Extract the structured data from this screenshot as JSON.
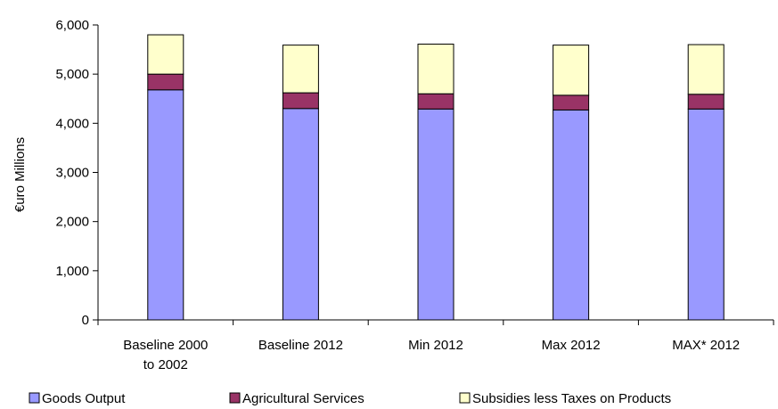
{
  "chart_data": {
    "type": "bar",
    "stacked": true,
    "title": "",
    "xlabel": "",
    "ylabel": "€uro Millions",
    "ylim": [
      0,
      6000
    ],
    "yticks": [
      "0",
      "1,000",
      "2,000",
      "3,000",
      "4,000",
      "5,000",
      "6,000"
    ],
    "ytick_values": [
      0,
      1000,
      2000,
      3000,
      4000,
      5000,
      6000
    ],
    "categories": [
      [
        "Baseline 2000",
        "to 2002"
      ],
      [
        "Baseline 2012"
      ],
      [
        "Min 2012"
      ],
      [
        "Max 2012"
      ],
      [
        "MAX* 2012"
      ]
    ],
    "series": [
      {
        "name": "Goods Output",
        "color": "#9999ff",
        "values": [
          4680,
          4300,
          4290,
          4270,
          4290
        ]
      },
      {
        "name": "Agricultural Services",
        "color": "#993366",
        "values": [
          320,
          320,
          310,
          300,
          300
        ]
      },
      {
        "name": "Subsidies less Taxes on Products",
        "color": "#ffffcc",
        "values": [
          800,
          970,
          1010,
          1020,
          1010
        ]
      }
    ],
    "grid": false,
    "legend_position": "bottom"
  }
}
